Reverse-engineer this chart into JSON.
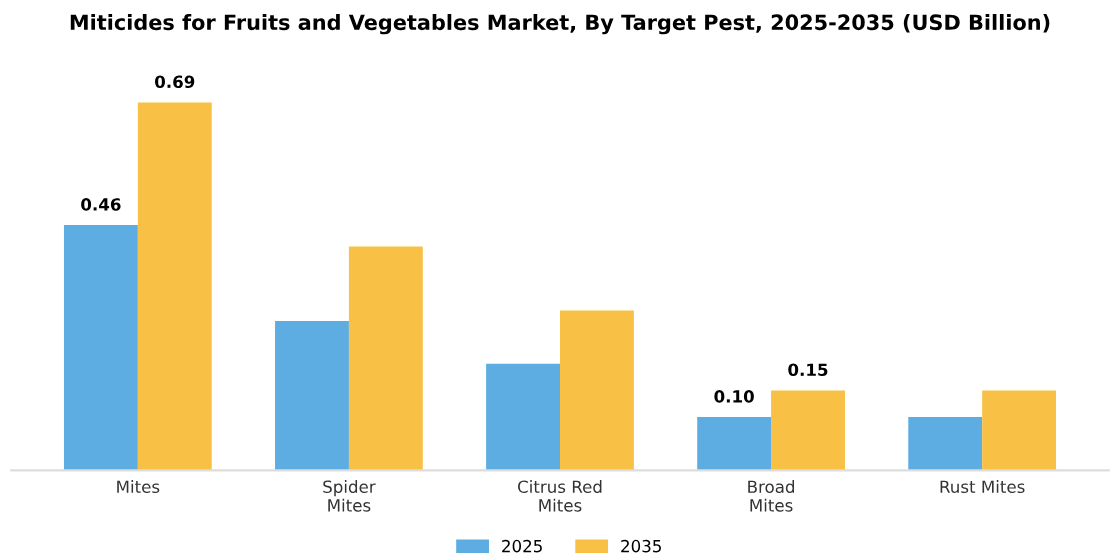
{
  "chart_data": {
    "type": "bar",
    "title": "Miticides for Fruits and Vegetables Market, By Target Pest, 2025-2035 (USD Billion)",
    "categories": [
      "Mites",
      "Spider\nMites",
      "Citrus Red\nMites",
      "Broad\nMites",
      "Rust Mites"
    ],
    "series": [
      {
        "name": "2025",
        "color": "#5dade2",
        "values": [
          0.46,
          0.28,
          0.2,
          0.1,
          0.1
        ],
        "value_labels": [
          "0.46",
          null,
          null,
          "0.10",
          null
        ]
      },
      {
        "name": "2035",
        "color": "#f8c145",
        "values": [
          0.69,
          0.42,
          0.3,
          0.15,
          0.15
        ],
        "value_labels": [
          "0.69",
          null,
          null,
          "0.15",
          null
        ]
      }
    ],
    "tick_labels": "x",
    "grid": false,
    "legend": "bottom"
  }
}
